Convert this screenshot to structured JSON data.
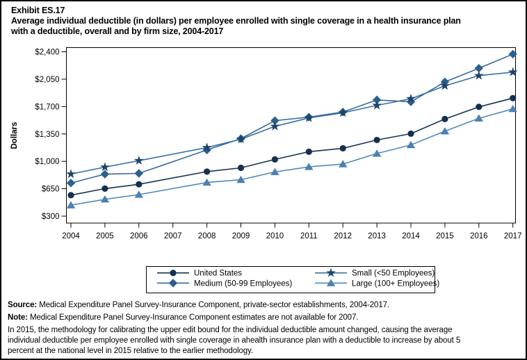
{
  "header": {
    "exhibit": "Exhibit ES.17",
    "title_line1": "Average individual deductible (in dollars) per employee enrolled with single coverage in a health insurance plan",
    "title_line2": "with a deductible, overall and by firm size, 2004-2017"
  },
  "chart_data": {
    "type": "line",
    "title": "Average individual deductible (in dollars) per employee enrolled with single coverage in a health insurance plan with a deductible, overall and by firm size, 2004-2017",
    "xlabel": "",
    "ylabel": "Dollars",
    "ylim": [
      300,
      2400
    ],
    "grid": false,
    "legend_position": "bottom",
    "missing_years_note": "2007 estimates not available; lines connect 2006 directly to 2008",
    "x": [
      2004,
      2005,
      2006,
      2007,
      2008,
      2009,
      2010,
      2011,
      2012,
      2013,
      2014,
      2015,
      2016,
      2017
    ],
    "ytick_values": [
      300,
      650,
      1000,
      1350,
      1700,
      2050,
      2400
    ],
    "ytick_labels": [
      "$300",
      "$650",
      "$1,000",
      "$1,350",
      "$1,700",
      "$2,050",
      "$2,400"
    ],
    "xtick_labels": [
      "2004",
      "2005",
      "2006",
      "2007",
      "2008",
      "2009",
      "2010",
      "2011",
      "2012",
      "2013",
      "2014",
      "2015",
      "2016",
      "2017"
    ],
    "series": [
      {
        "name": "United States",
        "marker": "circle",
        "marker_color": "#14304f",
        "line_color": "#17334f",
        "values": [
          568,
          652,
          707,
          null,
          869,
          917,
          1025,
          1123,
          1167,
          1273,
          1353,
          1541,
          1696,
          1808
        ]
      },
      {
        "name": "Small (<50 Employees)",
        "marker": "star",
        "marker_color": "#1e4569",
        "line_color": "#3a70a4",
        "values": [
          838,
          926,
          1009,
          null,
          1176,
          1283,
          1447,
          1555,
          1620,
          1715,
          1800,
          1965,
          2095,
          2140
        ]
      },
      {
        "name": "Medium (50-99 Employees)",
        "marker": "diamond",
        "marker_color": "#2d608f",
        "line_color": "#36689c",
        "values": [
          723,
          836,
          846,
          null,
          1145,
          1290,
          1520,
          1565,
          1630,
          1785,
          1760,
          2015,
          2190,
          2370
        ]
      },
      {
        "name": "Large (100+ Employees)",
        "marker": "triangle",
        "marker_color": "#4c80b0",
        "line_color": "#5389b9",
        "values": [
          440,
          515,
          575,
          null,
          730,
          765,
          865,
          930,
          965,
          1100,
          1210,
          1385,
          1550,
          1670
        ]
      }
    ]
  },
  "legend": {
    "items": [
      {
        "label": "United States",
        "series_index": 0
      },
      {
        "label": "Small (<50 Employees)",
        "series_index": 1
      },
      {
        "label": "Medium (50-99 Employees)",
        "series_index": 2
      },
      {
        "label": "Large (100+ Employees)",
        "series_index": 3
      }
    ]
  },
  "footer": {
    "source_label": "Source:",
    "source_text": " Medical Expenditure Panel Survey-Insurance Component, private-sector establishments, 2004-2017.",
    "note_label": "Note:",
    "note_text": " Medical Expenditure Panel Survey-Insurance Component estimates are not available for 2007.",
    "para_lines": [
      "In 2015, the methodology for calibrating the upper edit bound for the individual deductible amount changed, causing the average",
      "individual deductible per employee enrolled with single coverage in ahealth insurance plan with a deductible to increase by about 5",
      "percent at the national level in 2015 relative to the earlier methodology."
    ]
  }
}
